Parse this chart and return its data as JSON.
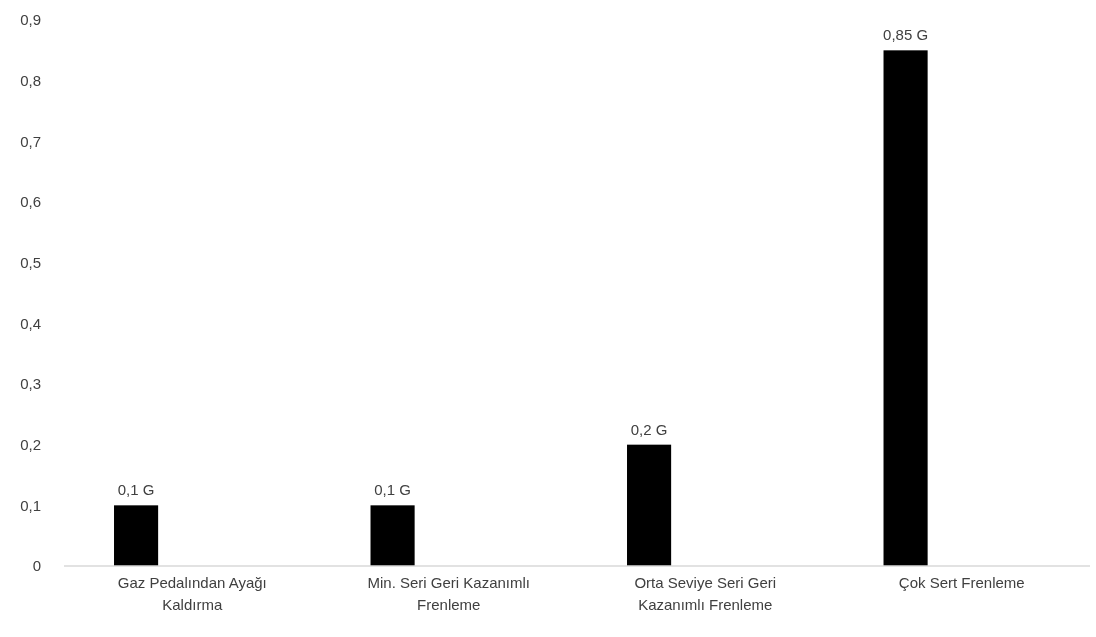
{
  "chart_data": {
    "type": "bar",
    "categories": [
      "Gaz Pedalından Ayağı Kaldırma",
      "Min. Seri Geri Kazanımlı Frenleme",
      "Orta Seviye Seri Geri Kazanımlı Frenleme",
      "Çok Sert Frenleme"
    ],
    "values": [
      0.1,
      0.1,
      0.2,
      0.85
    ],
    "color": "#000000",
    "value_labels": [
      "0,1 G",
      "0,1 G",
      "0,2 G",
      "0,85 G"
    ],
    "ylim": [
      0,
      0.9
    ],
    "yticks": [
      0,
      {
        "value": 0.1,
        "label": "0,1"
      },
      {
        "value": 0.2,
        "label": "0,2"
      },
      {
        "value": 0.3,
        "label": "0,3"
      },
      {
        "value": 0.4,
        "label": "0,4"
      },
      {
        "value": 0.5,
        "label": "0,5"
      },
      {
        "value": 0.6,
        "label": "0,6"
      },
      {
        "value": 0.7,
        "label": "0,7"
      },
      {
        "value": 0.8,
        "label": "0,8"
      },
      {
        "value": 0.9,
        "label": "0,9"
      }
    ]
  }
}
